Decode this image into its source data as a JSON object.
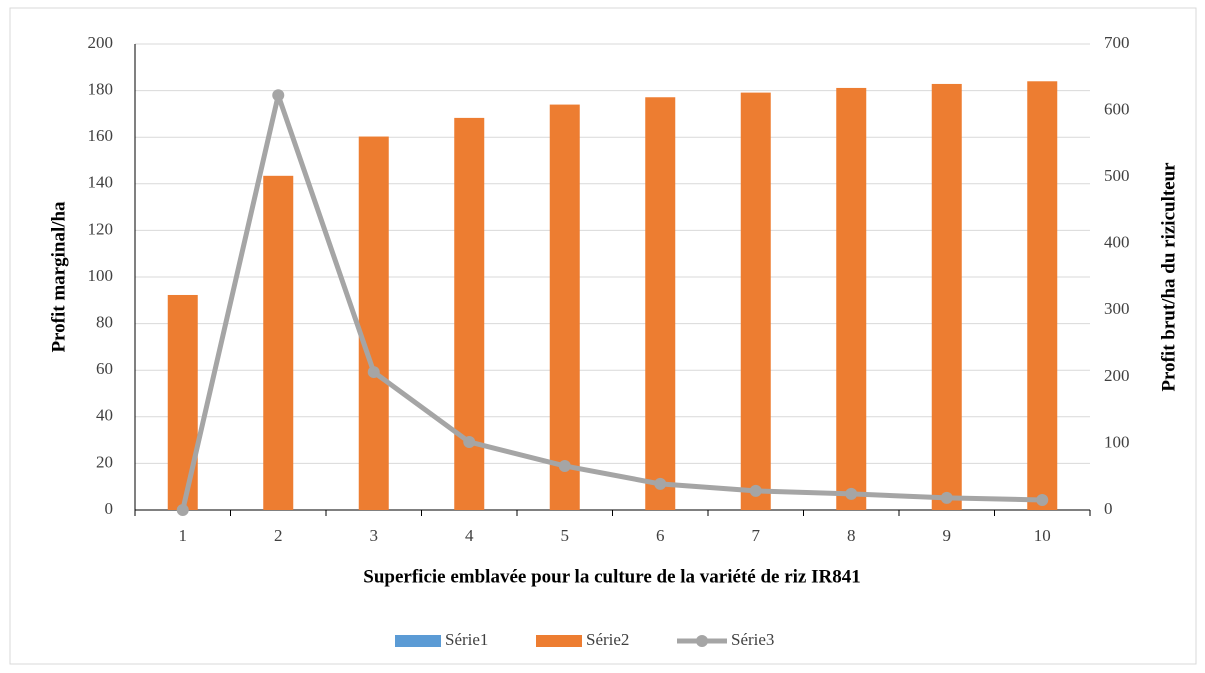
{
  "chart_data": {
    "type": "bar",
    "xlabel": "Superficie emblavée pour la culture de la variété de riz IR841",
    "ylabel": "Profit marginal/ha",
    "y2label": "Profit brut/ha du riziculteur",
    "categories": [
      "1",
      "2",
      "3",
      "4",
      "5",
      "6",
      "7",
      "8",
      "9",
      "10"
    ],
    "series": [
      {
        "name": "Série1",
        "type": "bar",
        "color": "#5b9bd5",
        "axis": "y",
        "values": [
          0,
          0,
          0,
          0,
          0,
          0,
          0,
          0,
          0,
          0
        ]
      },
      {
        "name": "Série2",
        "type": "bar",
        "color": "#ed7d31",
        "axis": "y2",
        "values": [
          323,
          502,
          561,
          589,
          609,
          620,
          627,
          634,
          640,
          644
        ]
      },
      {
        "name": "Série3",
        "type": "line",
        "color": "#a5a5a5",
        "axis": "y",
        "values": [
          0,
          178,
          59.2,
          29.2,
          18.9,
          11.2,
          8.2,
          6.9,
          5.2,
          4.3
        ]
      }
    ],
    "ylim": [
      0,
      200
    ],
    "yticks": [
      0,
      20,
      40,
      60,
      80,
      100,
      120,
      140,
      160,
      180,
      200
    ],
    "y2lim": [
      0,
      700
    ],
    "y2ticks": [
      0,
      100,
      200,
      300,
      400,
      500,
      600,
      700
    ],
    "grid": true,
    "legend": "bottom"
  }
}
